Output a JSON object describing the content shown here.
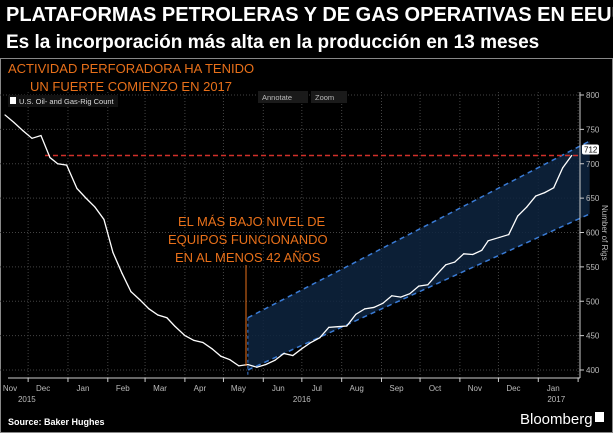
{
  "header": {
    "title": "PLATAFORMAS PETROLERAS Y DE GAS OPERATIVAS EN EEUU",
    "subtitle": "Es la incorporación más alta en la producción en 13 meses"
  },
  "annotations": {
    "top_line1": "ACTIVIDAD PERFORADORA HA TENIDO",
    "top_line2": "UN FUERTE COMIENZO EN 2017",
    "low_line1": "EL MÁS BAJO NIVEL DE",
    "low_line2": "EQUIPOS  FUNCIONANDO",
    "low_line3": "EN AL MENOS 42 AÑOS"
  },
  "toolbar": {
    "annotate": "Annotate",
    "zoom": "Zoom"
  },
  "footer": {
    "source": "Source: Baker Hughes",
    "brand": "Bloomberg"
  },
  "colors": {
    "line": "#ffffff",
    "reference": "#d0302a",
    "channel": "#3a7bd5",
    "annotation": "#e8701a"
  },
  "chart_data": {
    "type": "line",
    "title": "",
    "legend": {
      "entries": [
        "U.S. Oil- and Gas-Rig Count"
      ],
      "placement": "top-left"
    },
    "ylabel": "Number of Rigs",
    "ylim": [
      370,
      800
    ],
    "yticks": [
      400,
      450,
      500,
      550,
      600,
      650,
      700,
      750,
      800
    ],
    "x_month_labels": [
      "Nov",
      "Dec",
      "Jan",
      "Feb",
      "Mar",
      "Apr",
      "May",
      "Jun",
      "Jul",
      "Aug",
      "Sep",
      "Oct",
      "Nov",
      "Dec",
      "Jan"
    ],
    "x_year_labels": [
      "2015",
      "2016",
      "2017"
    ],
    "last_value_label": "712",
    "reference_line": 712,
    "grid": true,
    "series": [
      {
        "name": "U.S. Oil- and Gas-Rig Count",
        "x": [
          "2015-11-13",
          "2015-11-20",
          "2015-11-27",
          "2015-12-04",
          "2015-12-11",
          "2015-12-18",
          "2015-12-24",
          "2015-12-31",
          "2016-01-08",
          "2016-01-15",
          "2016-01-22",
          "2016-01-29",
          "2016-02-05",
          "2016-02-12",
          "2016-02-19",
          "2016-02-26",
          "2016-03-04",
          "2016-03-11",
          "2016-03-18",
          "2016-03-24",
          "2016-04-01",
          "2016-04-08",
          "2016-04-15",
          "2016-04-22",
          "2016-04-29",
          "2016-05-06",
          "2016-05-13",
          "2016-05-20",
          "2016-05-27",
          "2016-06-03",
          "2016-06-10",
          "2016-06-17",
          "2016-06-24",
          "2016-07-01",
          "2016-07-08",
          "2016-07-15",
          "2016-07-22",
          "2016-07-29",
          "2016-08-05",
          "2016-08-12",
          "2016-08-19",
          "2016-08-26",
          "2016-09-02",
          "2016-09-09",
          "2016-09-16",
          "2016-09-23",
          "2016-09-30",
          "2016-10-07",
          "2016-10-14",
          "2016-10-21",
          "2016-10-28",
          "2016-11-04",
          "2016-11-11",
          "2016-11-18",
          "2016-11-23",
          "2016-12-02",
          "2016-12-09",
          "2016-12-16",
          "2016-12-23",
          "2016-12-30",
          "2017-01-06",
          "2017-01-13",
          "2017-01-20",
          "2017-01-27"
        ],
        "values": [
          771,
          760,
          748,
          737,
          741,
          709,
          700,
          698,
          664,
          650,
          637,
          619,
          571,
          541,
          514,
          502,
          489,
          480,
          476,
          464,
          450,
          443,
          440,
          431,
          420,
          415,
          406,
          408,
          404,
          408,
          414,
          424,
          421,
          431,
          440,
          447,
          462,
          463,
          464,
          481,
          489,
          491,
          497,
          508,
          506,
          511,
          522,
          524,
          539,
          553,
          557,
          569,
          568,
          574,
          588,
          593,
          597,
          624,
          637,
          653,
          658,
          665,
          694,
          712
        ]
      }
    ],
    "channel": {
      "lower": [
        {
          "x": "2016-05-20",
          "y": 400
        },
        {
          "x": "2017-02-10",
          "y": 627
        }
      ],
      "upper": [
        {
          "x": "2016-05-20",
          "y": 476
        },
        {
          "x": "2017-02-10",
          "y": 733
        }
      ]
    }
  }
}
